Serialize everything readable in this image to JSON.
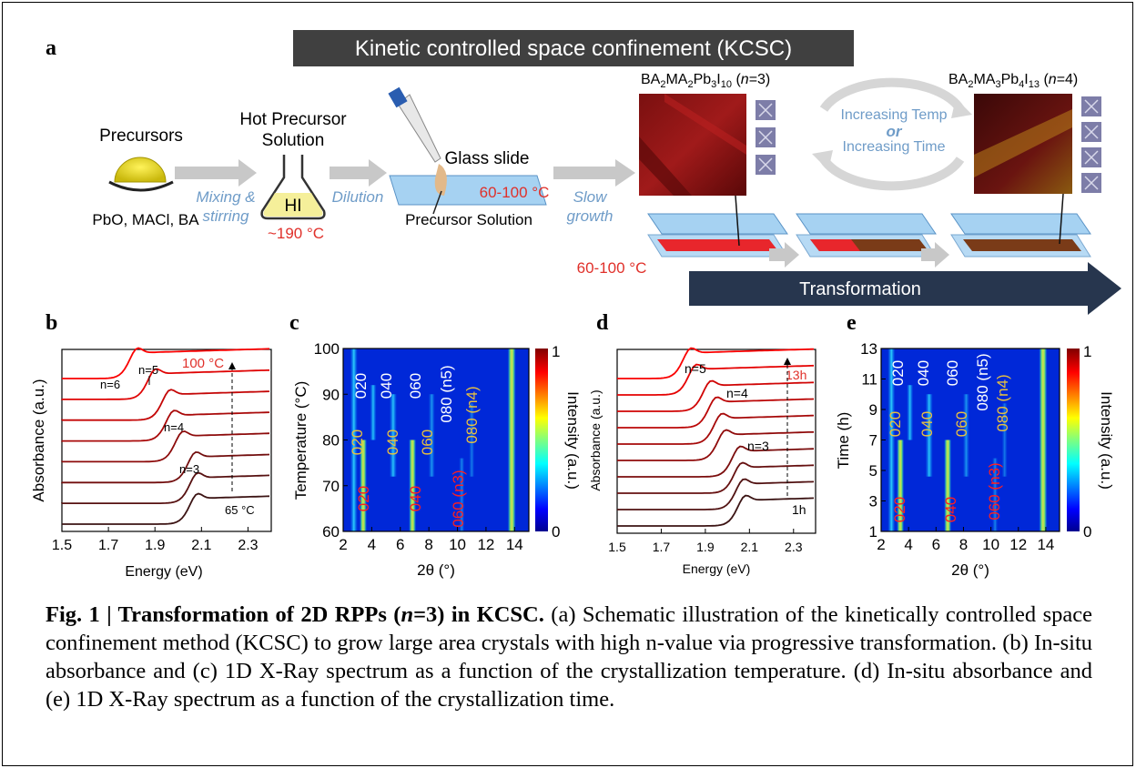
{
  "panel_labels": {
    "a": "a",
    "b": "b",
    "c": "c",
    "d": "d",
    "e": "e"
  },
  "schematic": {
    "title": "Kinetic controlled space confinement (KCSC)",
    "precursors_label": "Precursors",
    "precursors_list": "PbO, MACl, BA",
    "mixing_line1": "Mixing &",
    "mixing_line2": "stirring",
    "hot_precursor_line1": "Hot Precursor",
    "hot_precursor_line2": "Solution",
    "hi_label": "HI",
    "hot_temp": "~190 °C",
    "dilution": "Dilution",
    "glass_slide": "Glass slide",
    "slide_temp": "60-100 °C",
    "precursor_solution": "Precursor Solution",
    "slow_line1": "Slow",
    "slow_line2": "growth",
    "bottom_temp": "60-100 °C",
    "n3_formula": "BA",
    "n3_suffix": "(n=3)",
    "n4_suffix": "(n=4)",
    "loop_line1": "Increasing Temp",
    "loop_or": "or",
    "loop_line2": "Increasing Time",
    "transformation": "Transformation"
  },
  "chart_data": [
    {
      "panel": "b",
      "type": "line",
      "xlabel": "Energy (eV)",
      "ylabel": "Absorbance (a.u.)",
      "xlim": [
        1.5,
        2.4
      ],
      "xticks": [
        "1.5",
        "1.7",
        "1.9",
        "2.1",
        "2.3"
      ],
      "annotations": [
        "n=6",
        "n=5",
        "n=4",
        "n=3",
        "100 °C",
        "65 °C"
      ]
    },
    {
      "panel": "c",
      "type": "heatmap",
      "xlabel": "2θ (°)",
      "ylabel": "Temperature (°C)",
      "xticks": [
        "2",
        "4",
        "6",
        "8",
        "10",
        "12",
        "14"
      ],
      "yticks": [
        "60",
        "70",
        "80",
        "90",
        "100"
      ],
      "colorbar_label": "Intensity (a.u.)",
      "colorbar_ticks": [
        "1",
        "0"
      ],
      "annotations": [
        "020",
        "040",
        "060",
        "080 (n5)",
        "020",
        "040",
        "060",
        "080 (n4)",
        "020",
        "040",
        "060 (n3)"
      ]
    },
    {
      "panel": "d",
      "type": "line",
      "xlabel": "Energy (eV)",
      "ylabel": "Absorbance (a.u.)",
      "xlim": [
        1.5,
        2.4
      ],
      "xticks": [
        "1.5",
        "1.7",
        "1.9",
        "2.1",
        "2.3"
      ],
      "annotations": [
        "n=5",
        "n=4",
        "n=3",
        "13h",
        "1h"
      ]
    },
    {
      "panel": "e",
      "type": "heatmap",
      "xlabel": "2θ (°)",
      "ylabel": "Time (h)",
      "xticks": [
        "2",
        "4",
        "6",
        "8",
        "10",
        "12",
        "14"
      ],
      "yticks": [
        "1",
        "3",
        "5",
        "7",
        "9",
        "11",
        "13"
      ],
      "colorbar_label": "Intensity (a.u.)",
      "colorbar_ticks": [
        "1",
        "0"
      ],
      "annotations": [
        "020",
        "040",
        "060",
        "080 (n5)",
        "020",
        "040",
        "060",
        "080 (n4)",
        "020",
        "040",
        "060 (n3)"
      ]
    }
  ],
  "caption": {
    "fig_label": "Fig. 1 | Transformation of 2D RPPs (",
    "n_italic": "n",
    "fig_label_end": "=3) in KCSC.",
    "text": " (a) Schematic illustration of the kinetically controlled space confinement method (KCSC) to grow large area crystals with high n-value via progressive transformation. (b) In-situ absorbance and (c) 1D X-Ray spectrum as a function of the crystallization temperature. (d) In-situ absorbance and (e) 1D X-Ray spectrum as a function of the crystallization time."
  }
}
